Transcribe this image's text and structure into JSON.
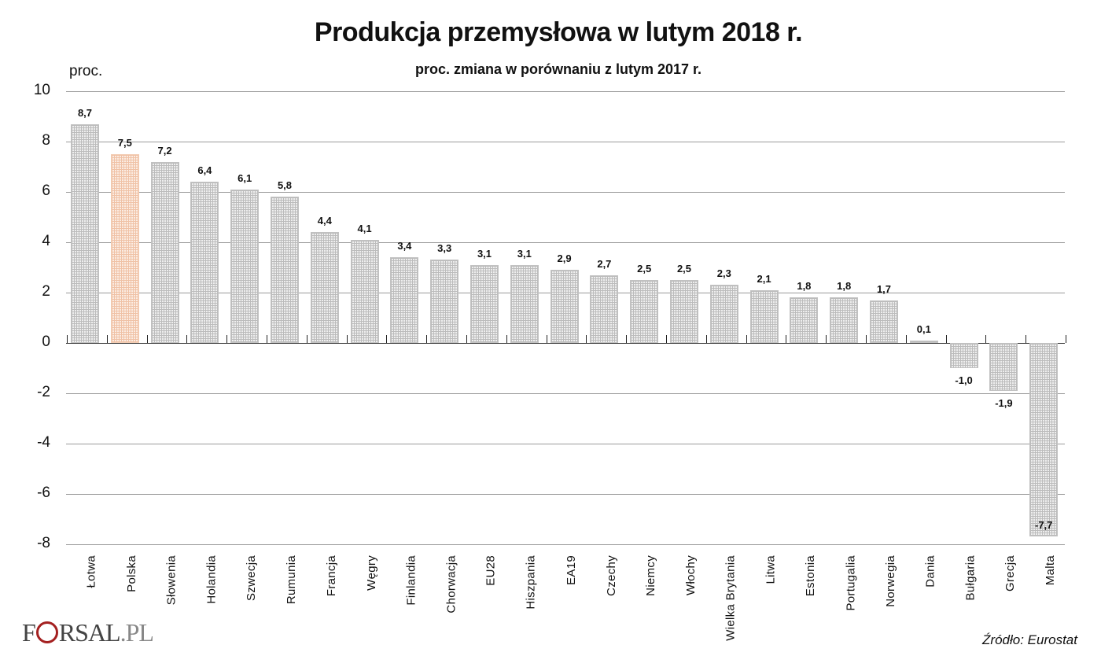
{
  "header": {
    "title": "Produkcja przemysłowa w lutym 2018 r.",
    "subtitle": "proc. zmiana w porównaniu z lutym 2017 r.",
    "unit": "proc."
  },
  "footer": {
    "logo_left": "F",
    "logo_mid": "RSAL",
    "logo_right": ".PL",
    "source": "Źródło: Eurostat"
  },
  "colors": {
    "bar": "#bcbcbc",
    "highlight": "#f0c2a6",
    "grid": "#9a9a9a",
    "logo_accent": "#a42020"
  },
  "chart_data": {
    "type": "bar",
    "title": "Produkcja przemysłowa w lutym 2018 r.",
    "subtitle": "proc. zmiana w porównaniu z lutym 2017 r.",
    "xlabel": "",
    "ylabel": "proc.",
    "ylim": [
      -8,
      10
    ],
    "yticks": [
      10,
      8,
      6,
      4,
      2,
      0,
      -2,
      -4,
      -6,
      -8
    ],
    "grid": true,
    "highlighted": "Polska",
    "categories": [
      "Łotwa",
      "Polska",
      "Słowenia",
      "Holandia",
      "Szwecja",
      "Rumunia",
      "Francja",
      "Węgry",
      "Finlandia",
      "Chorwacja",
      "EU28",
      "Hiszpania",
      "EA19",
      "Czechy",
      "Niemcy",
      "Włochy",
      "Wielka Brytania",
      "Litwa",
      "Estonia",
      "Portugalia",
      "Norwegia",
      "Dania",
      "Bułgaria",
      "Grecja",
      "Malta"
    ],
    "values": [
      8.7,
      7.5,
      7.2,
      6.4,
      6.1,
      5.8,
      4.4,
      4.1,
      3.4,
      3.3,
      3.1,
      3.1,
      2.9,
      2.7,
      2.5,
      2.5,
      2.3,
      2.1,
      1.8,
      1.8,
      1.7,
      0.1,
      -1.0,
      -1.9,
      -7.7
    ],
    "labels": [
      "8,7",
      "7,5",
      "7,2",
      "6,4",
      "6,1",
      "5,8",
      "4,4",
      "4,1",
      "3,4",
      "3,3",
      "3,1",
      "3,1",
      "2,9",
      "2,7",
      "2,5",
      "2,5",
      "2,3",
      "2,1",
      "1,8",
      "1,8",
      "1,7",
      "0,1",
      "-1,0",
      "-1,9",
      "-7,7"
    ],
    "source": "Źródło: Eurostat"
  }
}
